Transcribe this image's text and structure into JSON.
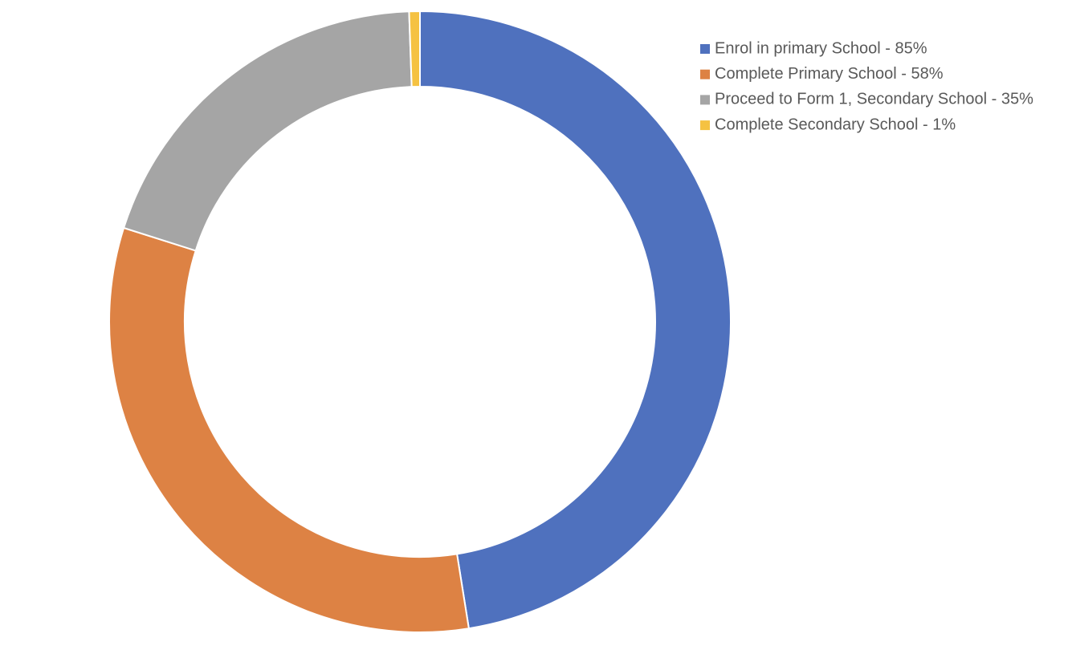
{
  "chart_data": {
    "type": "doughnut",
    "categories": [
      "Enrol in primary School - 85%",
      "Complete Primary School - 58%",
      "Proceed to Form 1, Secondary School - 35%",
      "Complete Secondary School - 1%"
    ],
    "values": [
      85,
      58,
      35,
      1
    ],
    "colors": [
      "#4f71be",
      "#dd8244",
      "#a5a5a5",
      "#f5c242"
    ],
    "legend": "top-right"
  }
}
